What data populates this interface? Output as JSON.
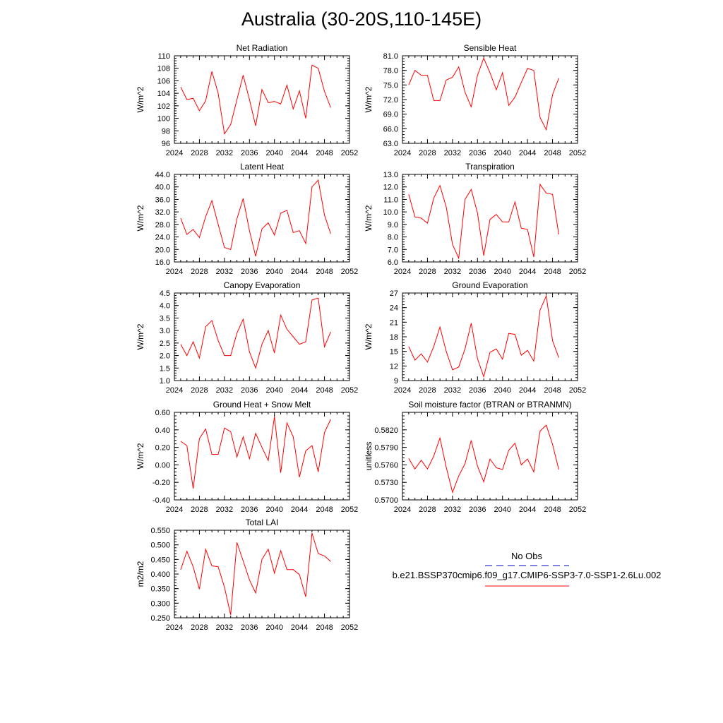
{
  "title": "Australia (30-20S,110-145E)",
  "colors": {
    "model": "#ff0000",
    "obs": "#0000cc",
    "axis": "#000000"
  },
  "legend": {
    "obs_label": "No Obs",
    "model_label": "b.e21.BSSP370cmip6.f09_g17.CMIP6-SSP3-7.0-SSP1-2.6Lu.002"
  },
  "chart_data": [
    {
      "type": "line",
      "title": "Net Radiation",
      "ylabel": "W/m^2",
      "xlim": [
        2024,
        2052
      ],
      "ylim": [
        96,
        110
      ],
      "xticks": [
        2024,
        2028,
        2032,
        2036,
        2040,
        2044,
        2048,
        2052
      ],
      "yticks": [
        "96",
        "98",
        "100",
        "102",
        "104",
        "106",
        "108",
        "110"
      ],
      "x": [
        2025,
        2026,
        2027,
        2028,
        2029,
        2030,
        2031,
        2032,
        2033,
        2034,
        2035,
        2036,
        2037,
        2038,
        2039,
        2040,
        2041,
        2042,
        2043,
        2044,
        2045,
        2046,
        2047,
        2048,
        2049
      ],
      "series": [
        {
          "values": [
            105.0,
            103.0,
            103.2,
            101.2,
            102.8,
            107.5,
            104.0,
            97.5,
            99.0,
            103.0,
            106.9,
            103.0,
            98.8,
            104.6,
            102.5,
            102.7,
            102.3,
            105.3,
            101.5,
            104.4,
            100.0,
            108.5,
            108.0,
            104.3,
            101.7
          ]
        }
      ]
    },
    {
      "type": "line",
      "title": "Sensible Heat",
      "ylabel": "W/m^2",
      "xlim": [
        2024,
        2052
      ],
      "ylim": [
        63,
        81
      ],
      "xticks": [
        2024,
        2028,
        2032,
        2036,
        2040,
        2044,
        2048,
        2052
      ],
      "yticks": [
        "63.0",
        "66.0",
        "69.0",
        "72.0",
        "75.0",
        "78.0",
        "81.0"
      ],
      "x": [
        2025,
        2026,
        2027,
        2028,
        2029,
        2030,
        2031,
        2032,
        2033,
        2034,
        2035,
        2036,
        2037,
        2038,
        2039,
        2040,
        2041,
        2042,
        2043,
        2044,
        2045,
        2046,
        2047,
        2048,
        2049
      ],
      "series": [
        {
          "values": [
            75.0,
            78.0,
            77.0,
            77.0,
            71.8,
            71.8,
            76.0,
            76.6,
            78.7,
            73.5,
            70.5,
            77.0,
            80.5,
            77.5,
            74.0,
            77.5,
            70.8,
            72.5,
            75.5,
            78.4,
            78.0,
            68.3,
            65.8,
            73.0,
            76.4
          ]
        }
      ]
    },
    {
      "type": "line",
      "title": "Latent Heat",
      "ylabel": "W/m^2",
      "xlim": [
        2024,
        2052
      ],
      "ylim": [
        16,
        44
      ],
      "xticks": [
        2024,
        2028,
        2032,
        2036,
        2040,
        2044,
        2048,
        2052
      ],
      "yticks": [
        "16.0",
        "20.0",
        "24.0",
        "28.0",
        "32.0",
        "36.0",
        "40.0",
        "44.0"
      ],
      "x": [
        2025,
        2026,
        2027,
        2028,
        2029,
        2030,
        2031,
        2032,
        2033,
        2034,
        2035,
        2036,
        2037,
        2038,
        2039,
        2040,
        2041,
        2042,
        2043,
        2044,
        2045,
        2046,
        2047,
        2048,
        2049
      ],
      "series": [
        {
          "values": [
            30.0,
            24.8,
            26.4,
            23.8,
            30.5,
            35.6,
            28.0,
            20.6,
            20.0,
            29.8,
            36.3,
            26.0,
            17.8,
            26.6,
            28.5,
            24.6,
            31.6,
            32.5,
            25.4,
            26.0,
            21.9,
            40.0,
            42.2,
            31.0,
            25.0
          ]
        }
      ]
    },
    {
      "type": "line",
      "title": "Transpiration",
      "ylabel": "W/m^2",
      "xlim": [
        2024,
        2052
      ],
      "ylim": [
        6,
        13
      ],
      "xticks": [
        2024,
        2028,
        2032,
        2036,
        2040,
        2044,
        2048,
        2052
      ],
      "yticks": [
        "6.0",
        "7.0",
        "8.0",
        "9.0",
        "10.0",
        "11.0",
        "12.0",
        "13.0"
      ],
      "x": [
        2025,
        2026,
        2027,
        2028,
        2029,
        2030,
        2031,
        2032,
        2033,
        2034,
        2035,
        2036,
        2037,
        2038,
        2039,
        2040,
        2041,
        2042,
        2043,
        2044,
        2045,
        2046,
        2047,
        2048,
        2049
      ],
      "series": [
        {
          "values": [
            11.4,
            9.6,
            9.5,
            9.1,
            11.1,
            12.1,
            10.4,
            7.4,
            6.3,
            11.0,
            11.8,
            9.9,
            6.5,
            9.4,
            9.8,
            9.2,
            9.2,
            10.8,
            8.7,
            8.6,
            6.4,
            12.2,
            11.5,
            11.4,
            8.2
          ]
        }
      ]
    },
    {
      "type": "line",
      "title": "Canopy Evaporation",
      "ylabel": "W/m^2",
      "xlim": [
        2024,
        2052
      ],
      "ylim": [
        1.0,
        4.5
      ],
      "xticks": [
        2024,
        2028,
        2032,
        2036,
        2040,
        2044,
        2048,
        2052
      ],
      "yticks": [
        "1.0",
        "1.5",
        "2.0",
        "2.5",
        "3.0",
        "3.5",
        "4.0",
        "4.5"
      ],
      "x": [
        2025,
        2026,
        2027,
        2028,
        2029,
        2030,
        2031,
        2032,
        2033,
        2034,
        2035,
        2036,
        2037,
        2038,
        2039,
        2040,
        2041,
        2042,
        2043,
        2044,
        2045,
        2046,
        2047,
        2048,
        2049
      ],
      "series": [
        {
          "values": [
            2.45,
            2.0,
            2.55,
            1.9,
            3.15,
            3.4,
            2.6,
            2.0,
            2.0,
            2.9,
            3.45,
            2.15,
            1.5,
            2.45,
            3.0,
            2.1,
            3.62,
            3.05,
            2.75,
            2.45,
            2.55,
            4.22,
            4.3,
            2.35,
            2.95
          ]
        }
      ]
    },
    {
      "type": "line",
      "title": "Ground Evaporation",
      "ylabel": "W/m^2",
      "xlim": [
        2024,
        2052
      ],
      "ylim": [
        9,
        27
      ],
      "xticks": [
        2024,
        2028,
        2032,
        2036,
        2040,
        2044,
        2048,
        2052
      ],
      "yticks": [
        "9",
        "12",
        "15",
        "18",
        "21",
        "24",
        "27"
      ],
      "x": [
        2025,
        2026,
        2027,
        2028,
        2029,
        2030,
        2031,
        2032,
        2033,
        2034,
        2035,
        2036,
        2037,
        2038,
        2039,
        2040,
        2041,
        2042,
        2043,
        2044,
        2045,
        2046,
        2047,
        2048,
        2049
      ],
      "series": [
        {
          "values": [
            16.0,
            13.2,
            14.5,
            12.8,
            16.0,
            20.0,
            15.0,
            11.2,
            11.8,
            15.5,
            20.8,
            13.5,
            9.8,
            14.8,
            15.5,
            13.4,
            18.7,
            18.5,
            14.2,
            15.2,
            13.0,
            23.5,
            26.4,
            17.2,
            13.7
          ]
        }
      ]
    },
    {
      "type": "line",
      "title": "Ground Heat + Snow Melt",
      "ylabel": "W/m^2",
      "xlim": [
        2024,
        2052
      ],
      "ylim": [
        -0.4,
        0.6
      ],
      "xticks": [
        2024,
        2028,
        2032,
        2036,
        2040,
        2044,
        2048,
        2052
      ],
      "yticks": [
        "-0.40",
        "-0.20",
        "0.00",
        "0.20",
        "0.40",
        "0.60"
      ],
      "x": [
        2025,
        2026,
        2027,
        2028,
        2029,
        2030,
        2031,
        2032,
        2033,
        2034,
        2035,
        2036,
        2037,
        2038,
        2039,
        2040,
        2041,
        2042,
        2043,
        2044,
        2045,
        2046,
        2047,
        2048,
        2049
      ],
      "series": [
        {
          "values": [
            0.27,
            0.22,
            -0.27,
            0.3,
            0.41,
            0.12,
            0.12,
            0.42,
            0.38,
            0.09,
            0.32,
            0.07,
            0.36,
            0.2,
            0.05,
            0.55,
            -0.09,
            0.48,
            0.32,
            -0.14,
            0.16,
            0.22,
            -0.08,
            0.37,
            0.52
          ]
        }
      ]
    },
    {
      "type": "line",
      "title": "Soil moisture factor (BTRAN or BTRANMN)",
      "ylabel": "unitless",
      "xlim": [
        2024,
        2052
      ],
      "ylim": [
        0.57,
        0.585
      ],
      "xticks": [
        2024,
        2028,
        2032,
        2036,
        2040,
        2044,
        2048,
        2052
      ],
      "yticks": [
        "0.5700",
        "0.5730",
        "0.5760",
        "0.5790",
        "0.5820"
      ],
      "x": [
        2025,
        2026,
        2027,
        2028,
        2029,
        2030,
        2031,
        2032,
        2033,
        2034,
        2035,
        2036,
        2037,
        2038,
        2039,
        2040,
        2041,
        2042,
        2043,
        2044,
        2045,
        2046,
        2047,
        2048,
        2049
      ],
      "series": [
        {
          "values": [
            0.5771,
            0.5753,
            0.5768,
            0.5753,
            0.5775,
            0.5806,
            0.5756,
            0.5713,
            0.5741,
            0.5762,
            0.5802,
            0.5758,
            0.5731,
            0.577,
            0.5755,
            0.5752,
            0.5785,
            0.5797,
            0.576,
            0.577,
            0.5748,
            0.5818,
            0.5828,
            0.5795,
            0.5752
          ]
        }
      ]
    },
    {
      "type": "line",
      "title": "Total LAI",
      "ylabel": "m2/m2",
      "xlim": [
        2024,
        2052
      ],
      "ylim": [
        0.25,
        0.55
      ],
      "xticks": [
        2024,
        2028,
        2032,
        2036,
        2040,
        2044,
        2048,
        2052
      ],
      "yticks": [
        "0.250",
        "0.300",
        "0.350",
        "0.400",
        "0.450",
        "0.500",
        "0.550"
      ],
      "x": [
        2025,
        2026,
        2027,
        2028,
        2029,
        2030,
        2031,
        2032,
        2033,
        2034,
        2035,
        2036,
        2037,
        2038,
        2039,
        2040,
        2041,
        2042,
        2043,
        2044,
        2045,
        2046,
        2047,
        2048,
        2049
      ],
      "series": [
        {
          "values": [
            0.415,
            0.478,
            0.425,
            0.348,
            0.485,
            0.428,
            0.425,
            0.355,
            0.26,
            0.508,
            0.445,
            0.38,
            0.335,
            0.45,
            0.485,
            0.403,
            0.48,
            0.415,
            0.415,
            0.398,
            0.322,
            0.54,
            0.47,
            0.462,
            0.443
          ]
        }
      ]
    }
  ]
}
